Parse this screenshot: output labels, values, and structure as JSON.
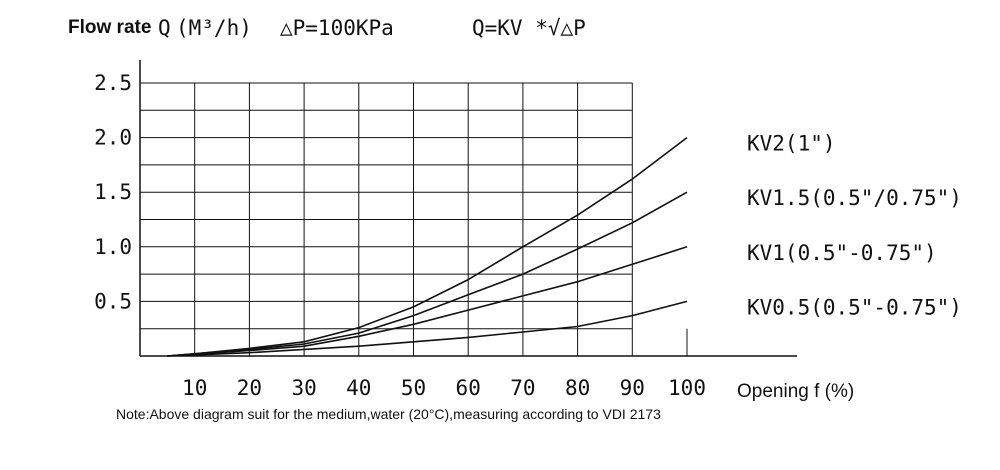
{
  "header": {
    "label": "Flow rate",
    "quantity": "Q",
    "unit": "(M³/h)",
    "pressure": "△P=100KPa",
    "formula": "Q=KV *√△P"
  },
  "note": "Note:Above diagram suit for the medium,water (20°C),measuring according to VDI 2173",
  "chart_data": {
    "type": "line",
    "title": "",
    "xlabel": "Opening f (%)",
    "ylabel": "Flow rate Q (M³/h)",
    "xlim": [
      0,
      100
    ],
    "ylim": [
      0,
      2.5
    ],
    "x_ticks": [
      10,
      20,
      30,
      40,
      50,
      60,
      70,
      80,
      90,
      100
    ],
    "y_ticks": [
      "0.5",
      "1.0",
      "1.5",
      "2.0",
      "2.5"
    ],
    "grid": true,
    "legend_position": "right",
    "series": [
      {
        "name": "KV2(1\")",
        "x": [
          5,
          10,
          20,
          30,
          40,
          50,
          60,
          70,
          80,
          90,
          100
        ],
        "y": [
          0,
          0.02,
          0.07,
          0.13,
          0.26,
          0.45,
          0.7,
          1.0,
          1.29,
          1.62,
          2.0
        ]
      },
      {
        "name": "KV1.5(0.5\"/0.75\")",
        "x": [
          5,
          10,
          20,
          30,
          40,
          50,
          60,
          70,
          80,
          90,
          100
        ],
        "y": [
          0,
          0.02,
          0.06,
          0.11,
          0.21,
          0.37,
          0.56,
          0.75,
          0.98,
          1.22,
          1.5
        ]
      },
      {
        "name": "KV1(0.5\"-0.75\")",
        "x": [
          5,
          10,
          20,
          30,
          40,
          50,
          60,
          70,
          80,
          90,
          100
        ],
        "y": [
          0,
          0.015,
          0.05,
          0.09,
          0.18,
          0.29,
          0.42,
          0.55,
          0.68,
          0.84,
          1.0
        ]
      },
      {
        "name": "KV0.5(0.5\"-0.75\")",
        "x": [
          5,
          10,
          20,
          30,
          40,
          50,
          60,
          70,
          80,
          90,
          100
        ],
        "y": [
          0,
          0.01,
          0.03,
          0.06,
          0.09,
          0.13,
          0.17,
          0.22,
          0.27,
          0.37,
          0.5
        ]
      }
    ]
  }
}
